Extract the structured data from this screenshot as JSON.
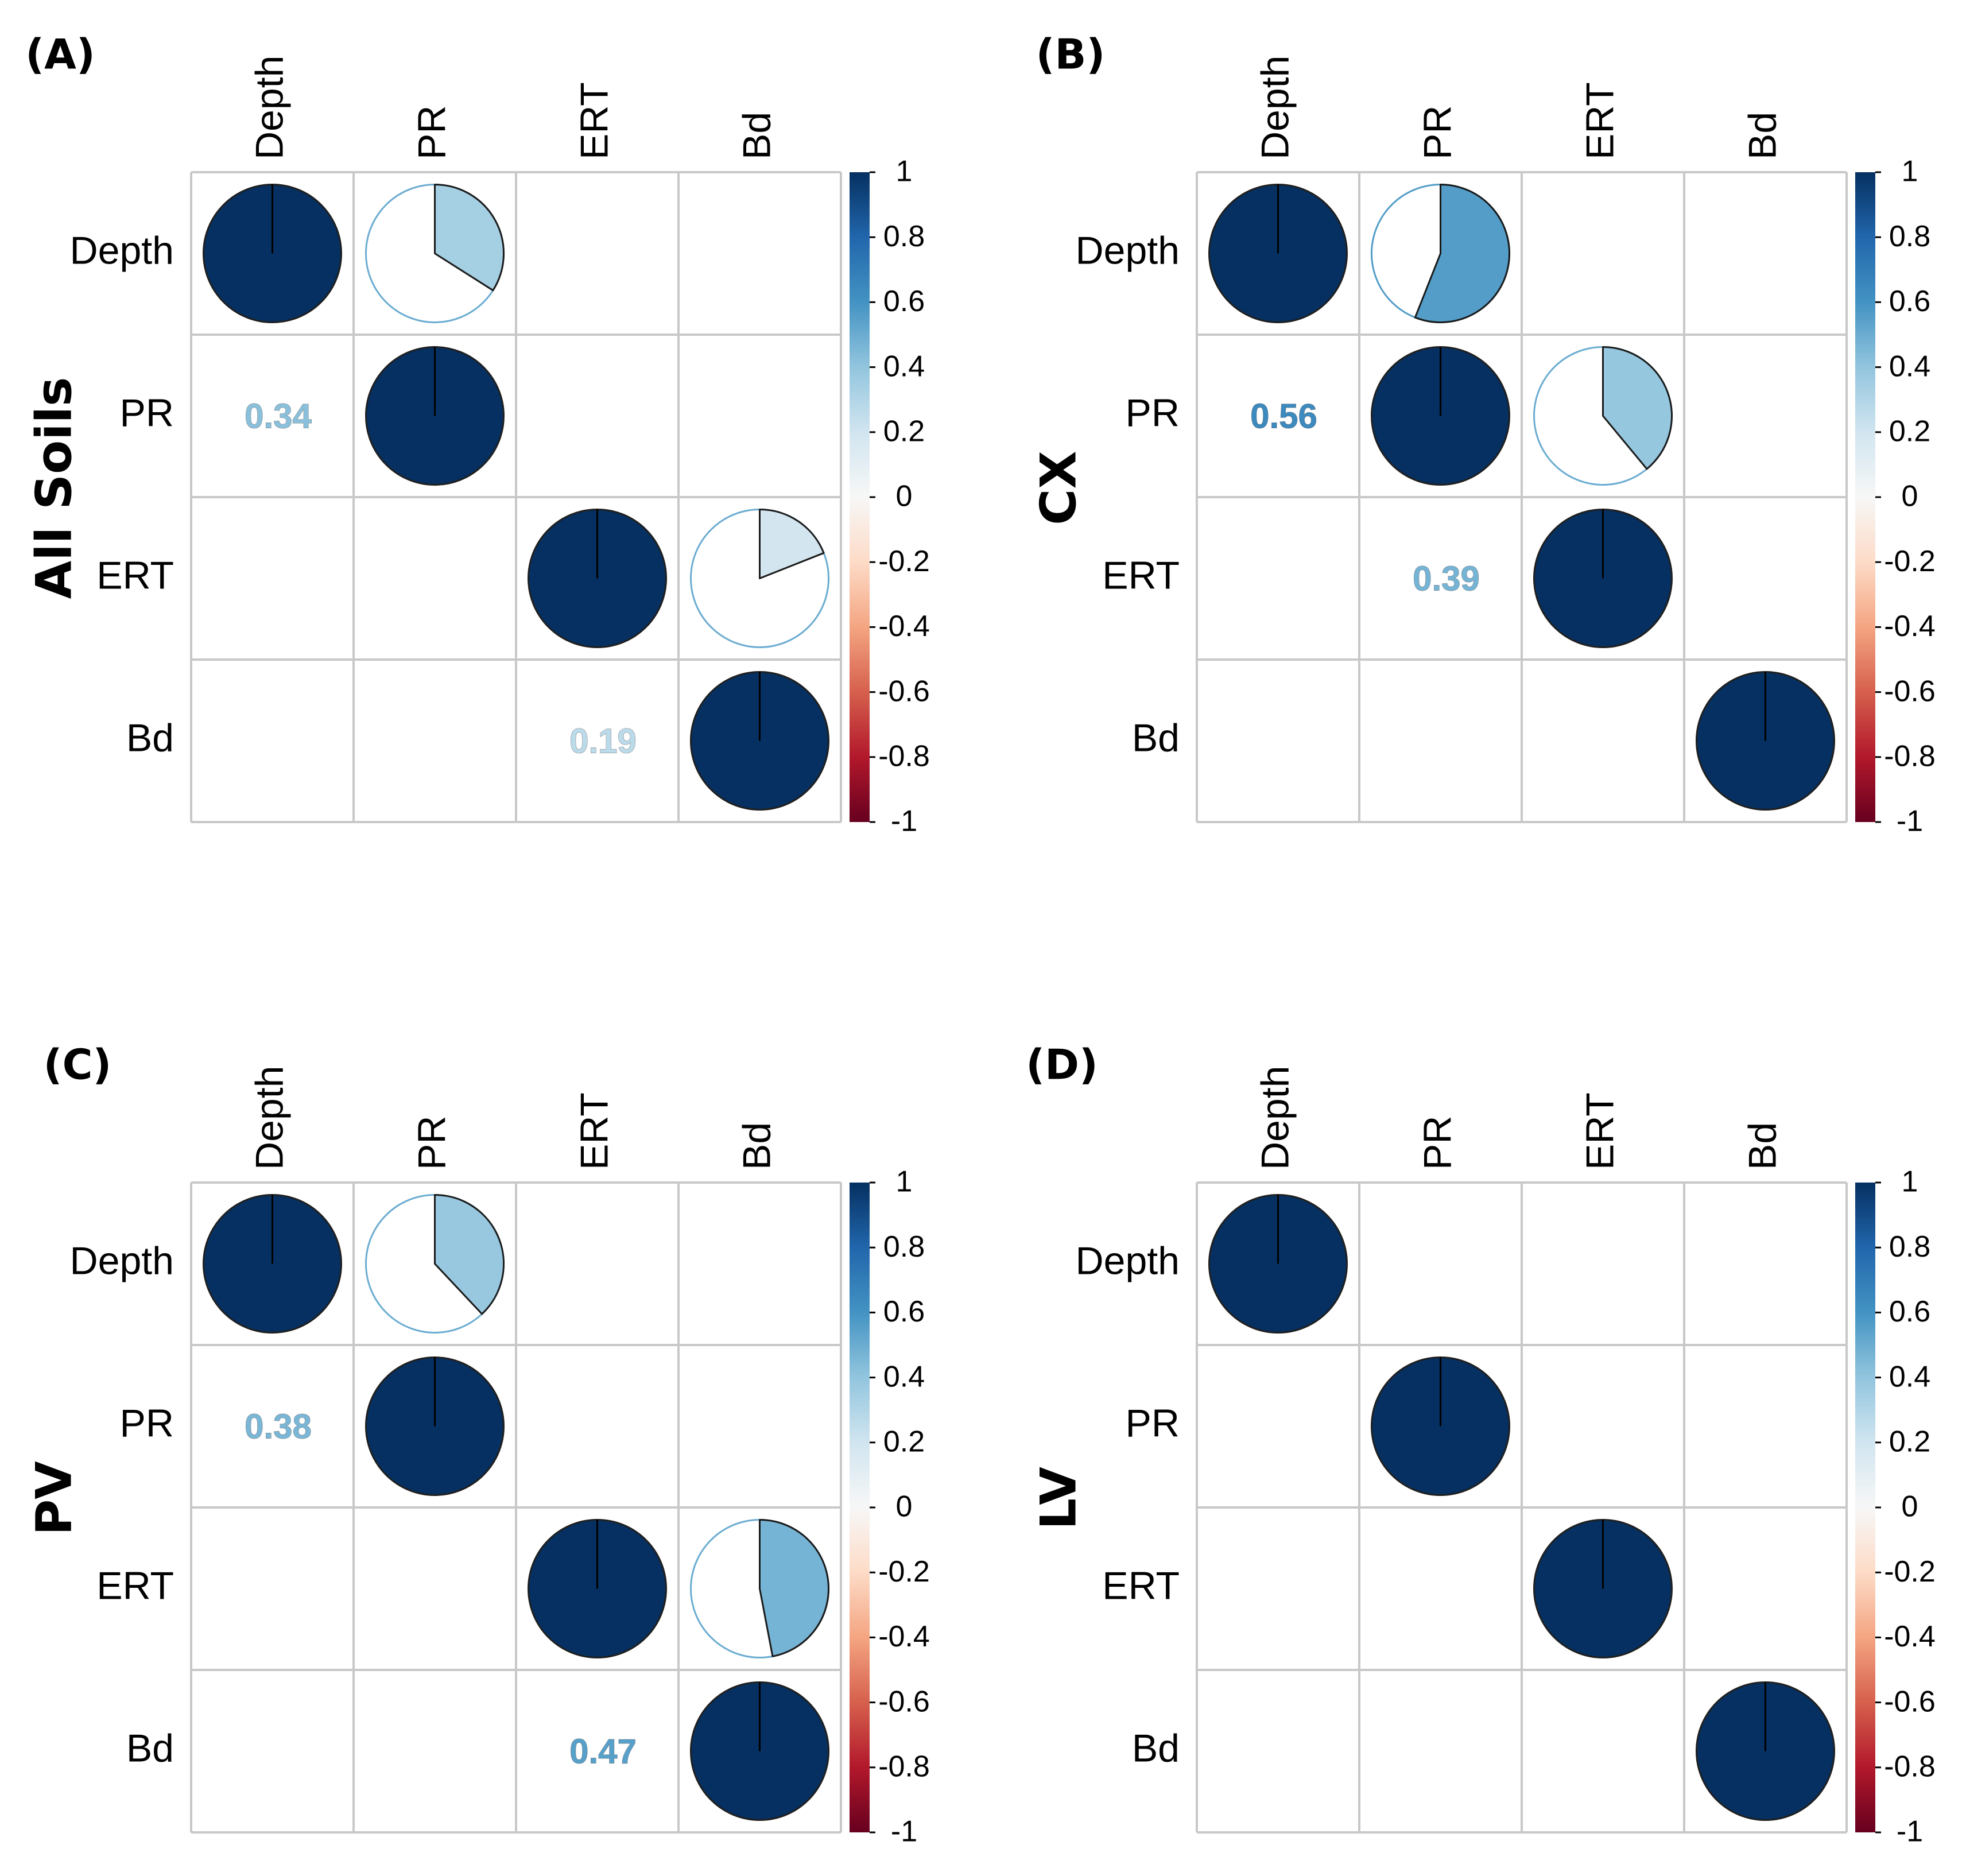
{
  "figure": {
    "color_scale": {
      "positive_high": "#053061",
      "zero": "#f7f7f7",
      "negative_low": "#67001f"
    },
    "chart_data": [
      {
        "type": "heatmap",
        "panel_label": "(A)",
        "group_label": "All Soils",
        "variables": [
          "Depth",
          "PR",
          "ERT",
          "Bd"
        ],
        "colorbar": {
          "range": [
            -1,
            1
          ],
          "ticks": [
            "1",
            "0.8",
            "0.6",
            "0.4",
            "0.2",
            "0",
            "-0.2",
            "-0.4",
            "-0.6",
            "-0.8",
            "-1"
          ]
        },
        "correlations": [
          {
            "row": 0,
            "col": 0,
            "value": 1
          },
          {
            "row": 1,
            "col": 1,
            "value": 1
          },
          {
            "row": 2,
            "col": 2,
            "value": 1
          },
          {
            "row": 3,
            "col": 3,
            "value": 1
          },
          {
            "row": 0,
            "col": 1,
            "value": 0.34
          },
          {
            "row": 2,
            "col": 3,
            "value": 0.19
          }
        ],
        "coefficients": [
          {
            "row": 1,
            "col": 0,
            "text": "0.34",
            "value": 0.34
          },
          {
            "row": 3,
            "col": 2,
            "text": "0.19",
            "value": 0.19
          }
        ]
      },
      {
        "type": "heatmap",
        "panel_label": "(B)",
        "group_label": "CX",
        "variables": [
          "Depth",
          "PR",
          "ERT",
          "Bd"
        ],
        "colorbar": {
          "range": [
            -1,
            1
          ],
          "ticks": [
            "1",
            "0.8",
            "0.6",
            "0.4",
            "0.2",
            "0",
            "-0.2",
            "-0.4",
            "-0.6",
            "-0.8",
            "-1"
          ]
        },
        "correlations": [
          {
            "row": 0,
            "col": 0,
            "value": 1
          },
          {
            "row": 1,
            "col": 1,
            "value": 1
          },
          {
            "row": 2,
            "col": 2,
            "value": 1
          },
          {
            "row": 3,
            "col": 3,
            "value": 1
          },
          {
            "row": 0,
            "col": 1,
            "value": 0.56
          },
          {
            "row": 1,
            "col": 2,
            "value": 0.39
          }
        ],
        "coefficients": [
          {
            "row": 1,
            "col": 0,
            "text": "0.56",
            "value": 0.56
          },
          {
            "row": 2,
            "col": 1,
            "text": "0.39",
            "value": 0.39
          }
        ]
      },
      {
        "type": "heatmap",
        "panel_label": "(C)",
        "group_label": "PV",
        "variables": [
          "Depth",
          "PR",
          "ERT",
          "Bd"
        ],
        "colorbar": {
          "range": [
            -1,
            1
          ],
          "ticks": [
            "1",
            "0.8",
            "0.6",
            "0.4",
            "0.2",
            "0",
            "-0.2",
            "-0.4",
            "-0.6",
            "-0.8",
            "-1"
          ]
        },
        "correlations": [
          {
            "row": 0,
            "col": 0,
            "value": 1
          },
          {
            "row": 1,
            "col": 1,
            "value": 1
          },
          {
            "row": 2,
            "col": 2,
            "value": 1
          },
          {
            "row": 3,
            "col": 3,
            "value": 1
          },
          {
            "row": 0,
            "col": 1,
            "value": 0.38
          },
          {
            "row": 2,
            "col": 3,
            "value": 0.47
          }
        ],
        "coefficients": [
          {
            "row": 1,
            "col": 0,
            "text": "0.38",
            "value": 0.38
          },
          {
            "row": 3,
            "col": 2,
            "text": "0.47",
            "value": 0.47
          }
        ]
      },
      {
        "type": "heatmap",
        "panel_label": "(D)",
        "group_label": "LV",
        "variables": [
          "Depth",
          "PR",
          "ERT",
          "Bd"
        ],
        "colorbar": {
          "range": [
            -1,
            1
          ],
          "ticks": [
            "1",
            "0.8",
            "0.6",
            "0.4",
            "0.2",
            "0",
            "-0.2",
            "-0.4",
            "-0.6",
            "-0.8",
            "-1"
          ]
        },
        "correlations": [
          {
            "row": 0,
            "col": 0,
            "value": 1
          },
          {
            "row": 1,
            "col": 1,
            "value": 1
          },
          {
            "row": 2,
            "col": 2,
            "value": 1
          },
          {
            "row": 3,
            "col": 3,
            "value": 1
          }
        ],
        "coefficients": []
      }
    ]
  }
}
